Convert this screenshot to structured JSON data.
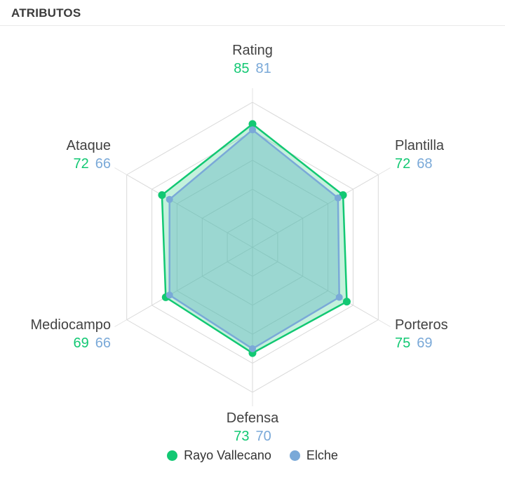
{
  "header": {
    "title": "ATRIBUTOS"
  },
  "chart_data": {
    "type": "radar",
    "categories": [
      "Rating",
      "Plantilla",
      "Porteros",
      "Defensa",
      "Mediocampo",
      "Ataque"
    ],
    "series": [
      {
        "name": "Rayo Vallecano",
        "color": "#12c873",
        "fill": "rgba(18,200,115,0.25)",
        "values": [
          85,
          72,
          75,
          73,
          69,
          72
        ]
      },
      {
        "name": "Elche",
        "color": "#7aa9d8",
        "fill": "rgba(125,173,220,0.42)",
        "values": [
          81,
          68,
          69,
          70,
          66,
          66
        ]
      }
    ],
    "axis_range": [
      0,
      100
    ],
    "grid": {
      "shape": "hexagon",
      "rings": 5,
      "color": "#d9d9d9",
      "extension_color": "#e3e3e3"
    },
    "legend_position": "bottom"
  }
}
